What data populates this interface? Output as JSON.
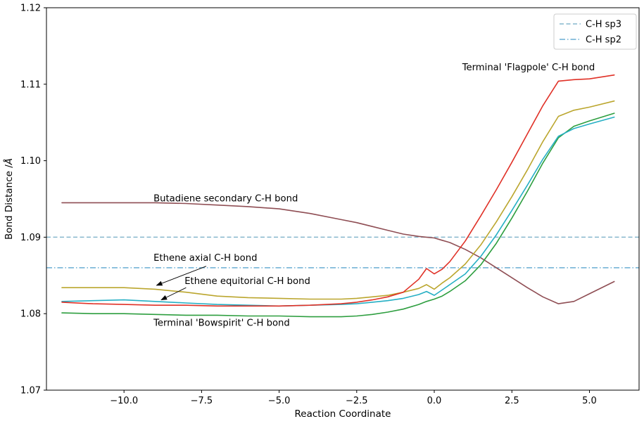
{
  "chart_data": {
    "type": "line",
    "title": "",
    "xlabel": "Reaction Coordinate",
    "ylabel": "Bond Distance /Å",
    "ylabel_main": "Bond Distance /",
    "ylabel_unit": "Å",
    "xlim": [
      -12.5,
      6.6
    ],
    "ylim": [
      1.07,
      1.12
    ],
    "grid": false,
    "background": "#ffffff",
    "xticks": [
      {
        "v": -10.0,
        "label": "−10.0"
      },
      {
        "v": -7.5,
        "label": "−7.5"
      },
      {
        "v": -5.0,
        "label": "−5.0"
      },
      {
        "v": -2.5,
        "label": "−2.5"
      },
      {
        "v": 0.0,
        "label": "0.0"
      },
      {
        "v": 2.5,
        "label": "2.5"
      },
      {
        "v": 5.0,
        "label": "5.0"
      }
    ],
    "yticks": [
      {
        "v": 1.07,
        "label": "1.07"
      },
      {
        "v": 1.08,
        "label": "1.08"
      },
      {
        "v": 1.09,
        "label": "1.09"
      },
      {
        "v": 1.1,
        "label": "1.10"
      },
      {
        "v": 1.11,
        "label": "1.11"
      },
      {
        "v": 1.12,
        "label": "1.12"
      }
    ],
    "x": [
      -12.0,
      -11.0,
      -10.0,
      -9.0,
      -8.0,
      -7.0,
      -6.0,
      -5.0,
      -4.0,
      -3.0,
      -2.5,
      -2.0,
      -1.5,
      -1.0,
      -0.5,
      -0.25,
      0.0,
      0.25,
      0.5,
      1.0,
      1.5,
      2.0,
      2.5,
      3.0,
      3.5,
      4.0,
      4.5,
      5.0,
      5.8
    ],
    "series": [
      {
        "name": "Terminal 'Flagpole' C-H bond",
        "color": "#e03127",
        "values": [
          1.0815,
          1.0813,
          1.0812,
          1.0811,
          1.0811,
          1.081,
          1.081,
          1.081,
          1.0811,
          1.0813,
          1.0815,
          1.0818,
          1.0822,
          1.0828,
          1.0845,
          1.0859,
          1.0852,
          1.0858,
          1.0868,
          1.0895,
          1.0928,
          1.0962,
          1.0998,
          1.1035,
          1.1072,
          1.1104,
          1.1106,
          1.1107,
          1.1112
        ]
      },
      {
        "name": "Ethene axial C-H bond",
        "color": "#bba62e",
        "values": [
          1.0834,
          1.0834,
          1.0834,
          1.0832,
          1.0828,
          1.0823,
          1.0821,
          1.082,
          1.0819,
          1.0819,
          1.082,
          1.0822,
          1.0824,
          1.0828,
          1.0833,
          1.0838,
          1.0832,
          1.084,
          1.0847,
          1.0865,
          1.089,
          1.092,
          1.0953,
          1.0988,
          1.1025,
          1.1058,
          1.1066,
          1.107,
          1.1078
        ]
      },
      {
        "name": "Ethene equitorial C-H bond",
        "color": "#25afc4",
        "values": [
          1.0816,
          1.0817,
          1.0818,
          1.0816,
          1.0814,
          1.0812,
          1.0811,
          1.081,
          1.0811,
          1.0812,
          1.0813,
          1.0815,
          1.0817,
          1.082,
          1.0825,
          1.0829,
          1.0824,
          1.0831,
          1.0838,
          1.0852,
          1.0875,
          1.0903,
          1.0935,
          1.0968,
          1.1002,
          1.1032,
          1.1042,
          1.1048,
          1.1057
        ]
      },
      {
        "name": "Terminal 'Bowspirit' C-H bond",
        "color": "#2d9e3f",
        "values": [
          1.0801,
          1.08,
          1.08,
          1.0799,
          1.0798,
          1.0798,
          1.0797,
          1.0797,
          1.0796,
          1.0796,
          1.0797,
          1.0799,
          1.0802,
          1.0806,
          1.0812,
          1.0816,
          1.0819,
          1.0823,
          1.0829,
          1.0843,
          1.0864,
          1.0892,
          1.0925,
          1.096,
          1.0997,
          1.103,
          1.1045,
          1.1052,
          1.1062
        ]
      },
      {
        "name": "Butadiene secondary C-H bond",
        "color": "#8f4e54",
        "values": [
          1.0945,
          1.0945,
          1.0945,
          1.0945,
          1.0944,
          1.0942,
          1.094,
          1.0937,
          1.0931,
          1.0923,
          1.0919,
          1.0914,
          1.0909,
          1.0904,
          1.0901,
          1.09,
          1.0899,
          1.0896,
          1.0893,
          1.0884,
          1.0873,
          1.086,
          1.0847,
          1.0834,
          1.0822,
          1.0813,
          1.0816,
          1.0826,
          1.0842
        ]
      }
    ],
    "reference_lines": [
      {
        "label": "C-H sp3",
        "y": 1.09,
        "style": "dashed",
        "color": "#85b7cd"
      },
      {
        "label": "C-H sp2",
        "y": 1.086,
        "style": "dashdot",
        "color": "#6aaed3"
      }
    ],
    "legend": {
      "position": "upper right",
      "entries": [
        "C-H sp3",
        "C-H sp2"
      ]
    },
    "annotations": [
      {
        "text": "Terminal 'Flagpole' C-H bond",
        "x": 0.9,
        "y": 1.1118,
        "arrow": null
      },
      {
        "text": "Butadiene secondary C-H bond",
        "x": -9.05,
        "y": 1.0947,
        "arrow": null
      },
      {
        "text": "Ethene axial C-H bond",
        "x": -9.05,
        "y": 1.0869,
        "arrow": {
          "from": [
            -7.35,
            1.0862
          ],
          "to": [
            -8.95,
            1.0837
          ]
        }
      },
      {
        "text": "Ethene equitorial C-H bond",
        "x": -8.05,
        "y": 1.0839,
        "arrow": {
          "from": [
            -8.0,
            1.0834
          ],
          "to": [
            -8.8,
            1.0818
          ]
        }
      },
      {
        "text": "Terminal 'Bowspirit' C-H bond",
        "x": -9.05,
        "y": 1.0784,
        "arrow": null
      }
    ]
  }
}
